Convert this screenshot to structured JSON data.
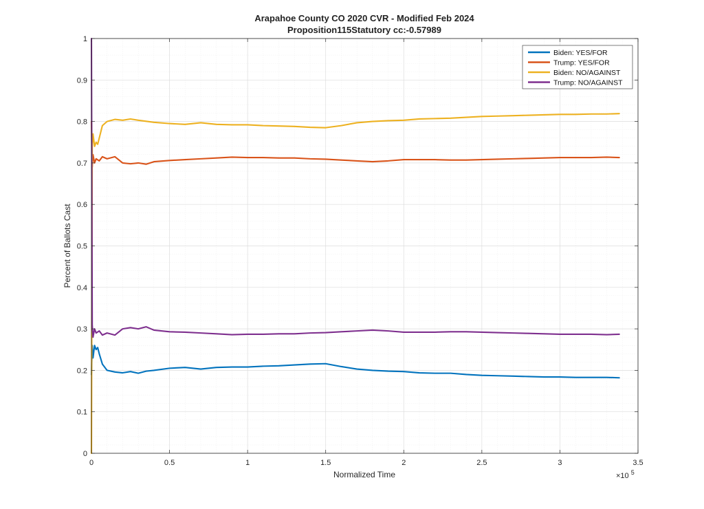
{
  "chart_data": {
    "type": "line",
    "title": "Arapahoe County CO 2020 CVR - Modified Feb 2024",
    "subtitle": "Proposition115Statutory cc:-0.57989",
    "xlabel": "Normalized Time",
    "ylabel": "Percent of Ballots Cast",
    "x_exponent_label": "×10",
    "x_exponent": "5",
    "xlim": [
      0,
      3.5
    ],
    "ylim": [
      0,
      1
    ],
    "x_ticks": [
      "0",
      "0.5",
      "1",
      "1.5",
      "2",
      "2.5",
      "3",
      "3.5"
    ],
    "y_ticks": [
      "0",
      "0.1",
      "0.2",
      "0.3",
      "0.4",
      "0.5",
      "0.6",
      "0.7",
      "0.8",
      "0.9",
      "1"
    ],
    "grid": true,
    "legend_position": "top-right",
    "series": [
      {
        "name": "Biden: YES/FOR",
        "color": "#0072BD",
        "x": [
          0,
          0.005,
          0.01,
          0.02,
          0.03,
          0.04,
          0.05,
          0.07,
          0.1,
          0.15,
          0.2,
          0.25,
          0.3,
          0.35,
          0.4,
          0.5,
          0.6,
          0.7,
          0.8,
          0.9,
          1.0,
          1.1,
          1.2,
          1.3,
          1.4,
          1.5,
          1.6,
          1.7,
          1.8,
          1.9,
          2.0,
          2.1,
          2.2,
          2.3,
          2.4,
          2.5,
          2.6,
          2.7,
          2.8,
          2.9,
          3.0,
          3.1,
          3.2,
          3.3,
          3.38
        ],
        "values": [
          0.19,
          0.26,
          0.23,
          0.26,
          0.25,
          0.255,
          0.24,
          0.215,
          0.2,
          0.196,
          0.194,
          0.197,
          0.193,
          0.198,
          0.2,
          0.205,
          0.207,
          0.203,
          0.207,
          0.208,
          0.208,
          0.21,
          0.211,
          0.213,
          0.215,
          0.216,
          0.209,
          0.203,
          0.2,
          0.198,
          0.197,
          0.194,
          0.193,
          0.193,
          0.19,
          0.188,
          0.187,
          0.186,
          0.185,
          0.184,
          0.184,
          0.183,
          0.183,
          0.183,
          0.182
        ]
      },
      {
        "name": "Trump: YES/FOR",
        "color": "#D95319",
        "x": [
          0,
          0.005,
          0.01,
          0.02,
          0.03,
          0.05,
          0.07,
          0.1,
          0.15,
          0.2,
          0.25,
          0.3,
          0.35,
          0.4,
          0.5,
          0.6,
          0.7,
          0.8,
          0.9,
          1.0,
          1.1,
          1.2,
          1.3,
          1.4,
          1.5,
          1.6,
          1.7,
          1.8,
          1.9,
          2.0,
          2.1,
          2.2,
          2.3,
          2.4,
          2.5,
          2.6,
          2.7,
          2.8,
          2.9,
          3.0,
          3.1,
          3.2,
          3.3,
          3.38
        ],
        "values": [
          0.8,
          0.69,
          0.72,
          0.7,
          0.71,
          0.705,
          0.715,
          0.71,
          0.715,
          0.7,
          0.698,
          0.7,
          0.697,
          0.703,
          0.706,
          0.708,
          0.71,
          0.712,
          0.714,
          0.713,
          0.713,
          0.712,
          0.712,
          0.71,
          0.709,
          0.707,
          0.705,
          0.703,
          0.705,
          0.708,
          0.708,
          0.708,
          0.707,
          0.707,
          0.708,
          0.709,
          0.71,
          0.711,
          0.712,
          0.713,
          0.713,
          0.713,
          0.714,
          0.713
        ]
      },
      {
        "name": "Biden: NO/AGAINST",
        "color": "#EDB120",
        "x": [
          0,
          0.005,
          0.01,
          0.02,
          0.03,
          0.04,
          0.05,
          0.07,
          0.1,
          0.15,
          0.2,
          0.25,
          0.3,
          0.4,
          0.5,
          0.6,
          0.7,
          0.8,
          0.9,
          1.0,
          1.1,
          1.2,
          1.3,
          1.4,
          1.5,
          1.6,
          1.7,
          1.8,
          1.9,
          2.0,
          2.1,
          2.2,
          2.3,
          2.4,
          2.5,
          2.6,
          2.7,
          2.8,
          2.9,
          3.0,
          3.1,
          3.2,
          3.3,
          3.38
        ],
        "values": [
          0.0,
          0.74,
          0.77,
          0.74,
          0.75,
          0.745,
          0.76,
          0.79,
          0.8,
          0.805,
          0.803,
          0.806,
          0.803,
          0.798,
          0.795,
          0.793,
          0.797,
          0.793,
          0.792,
          0.792,
          0.79,
          0.789,
          0.788,
          0.786,
          0.785,
          0.79,
          0.797,
          0.8,
          0.802,
          0.803,
          0.806,
          0.807,
          0.808,
          0.81,
          0.812,
          0.813,
          0.814,
          0.815,
          0.816,
          0.817,
          0.817,
          0.818,
          0.818,
          0.819
        ]
      },
      {
        "name": "Trump: NO/AGAINST",
        "color": "#7E2F8E",
        "x": [
          0,
          0.005,
          0.01,
          0.02,
          0.03,
          0.05,
          0.07,
          0.1,
          0.15,
          0.2,
          0.25,
          0.3,
          0.35,
          0.4,
          0.5,
          0.6,
          0.7,
          0.8,
          0.9,
          1.0,
          1.1,
          1.2,
          1.3,
          1.4,
          1.5,
          1.6,
          1.7,
          1.8,
          1.9,
          2.0,
          2.1,
          2.2,
          2.3,
          2.4,
          2.5,
          2.6,
          2.7,
          2.8,
          2.9,
          3.0,
          3.1,
          3.2,
          3.3,
          3.38
        ],
        "values": [
          1.0,
          0.31,
          0.28,
          0.3,
          0.29,
          0.295,
          0.285,
          0.29,
          0.285,
          0.3,
          0.303,
          0.3,
          0.305,
          0.297,
          0.293,
          0.292,
          0.29,
          0.288,
          0.286,
          0.287,
          0.287,
          0.288,
          0.288,
          0.29,
          0.291,
          0.293,
          0.295,
          0.297,
          0.295,
          0.292,
          0.292,
          0.292,
          0.293,
          0.293,
          0.292,
          0.291,
          0.29,
          0.289,
          0.288,
          0.287,
          0.287,
          0.287,
          0.286,
          0.287
        ]
      }
    ]
  }
}
